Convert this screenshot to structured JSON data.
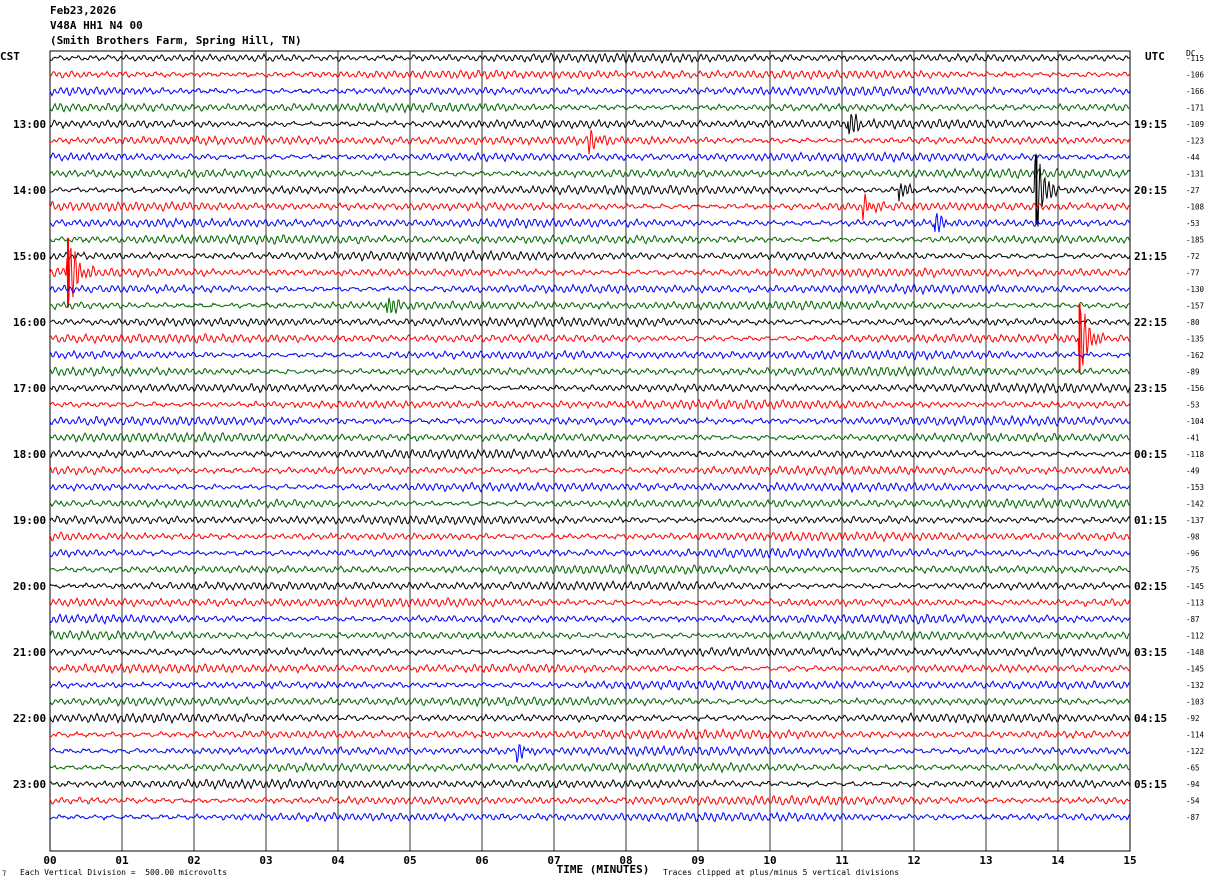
{
  "header": {
    "date": "Feb23,2026",
    "station": "V48A HH1 N4 00",
    "location": "(Smith Brothers Farm, Spring Hill, TN)"
  },
  "left_tz": "CST",
  "right_tz": "UTC",
  "dc_label": "DC",
  "footer": {
    "scale_note": "Each Vertical Division =  500.00 microvolts",
    "clip_note": "Traces clipped at plus/minus 5 vertical divisions"
  },
  "chart_data": {
    "type": "line",
    "xlabel": "TIME (MINUTES)",
    "xlim": [
      0,
      15
    ],
    "x_ticks": [
      "00",
      "01",
      "02",
      "03",
      "04",
      "05",
      "06",
      "07",
      "08",
      "09",
      "10",
      "11",
      "12",
      "13",
      "14",
      "15"
    ],
    "trace_colors": [
      "#000000",
      "#ff0000",
      "#0000ff",
      "#006600"
    ],
    "left_hour_labels": [
      "13:00",
      "14:00",
      "15:00",
      "16:00",
      "17:00",
      "18:00",
      "19:00",
      "20:00",
      "21:00",
      "22:00",
      "23:00"
    ],
    "right_hour_labels": [
      "19:15",
      "20:15",
      "21:15",
      "22:15",
      "23:15",
      "00:15",
      "01:15",
      "02:15",
      "03:15",
      "04:15",
      "05:15"
    ],
    "dc_offsets": [
      "-115",
      "-106",
      "-166",
      "-171",
      "-109",
      "-123",
      "-44",
      "-131",
      "-27",
      "-108",
      "-53",
      "-185",
      "-72",
      "-77",
      "-130",
      "-157",
      "-80",
      "-135",
      "-162",
      "-89",
      "-156",
      "-53",
      "-104",
      "-41",
      "-118",
      "-49",
      "-153",
      "-142",
      "-137",
      "-98",
      "-96",
      "-75",
      "-145",
      "-113",
      "-87",
      "-112",
      "-148",
      "-145",
      "-132",
      "-103",
      "-92",
      "-114",
      "-122",
      "-65",
      "-94",
      "-54",
      "-87"
    ],
    "events": [
      {
        "row": 4,
        "minute": 11.1,
        "amp": 1.0
      },
      {
        "row": 5,
        "minute": 7.5,
        "amp": 0.9
      },
      {
        "row": 8,
        "minute": 13.7,
        "amp": 3.0,
        "clipped": true
      },
      {
        "row": 8,
        "minute": 11.8,
        "amp": 0.8
      },
      {
        "row": 9,
        "minute": 11.3,
        "amp": 0.9
      },
      {
        "row": 10,
        "minute": 12.3,
        "amp": 0.8
      },
      {
        "row": 13,
        "minute": 0.25,
        "amp": 3.0,
        "clipped": true
      },
      {
        "row": 17,
        "minute": 14.3,
        "amp": 3.0,
        "clipped": true
      },
      {
        "row": 15,
        "minute": 4.7,
        "amp": 0.8
      },
      {
        "row": 42,
        "minute": 6.5,
        "amp": 0.7
      }
    ]
  }
}
